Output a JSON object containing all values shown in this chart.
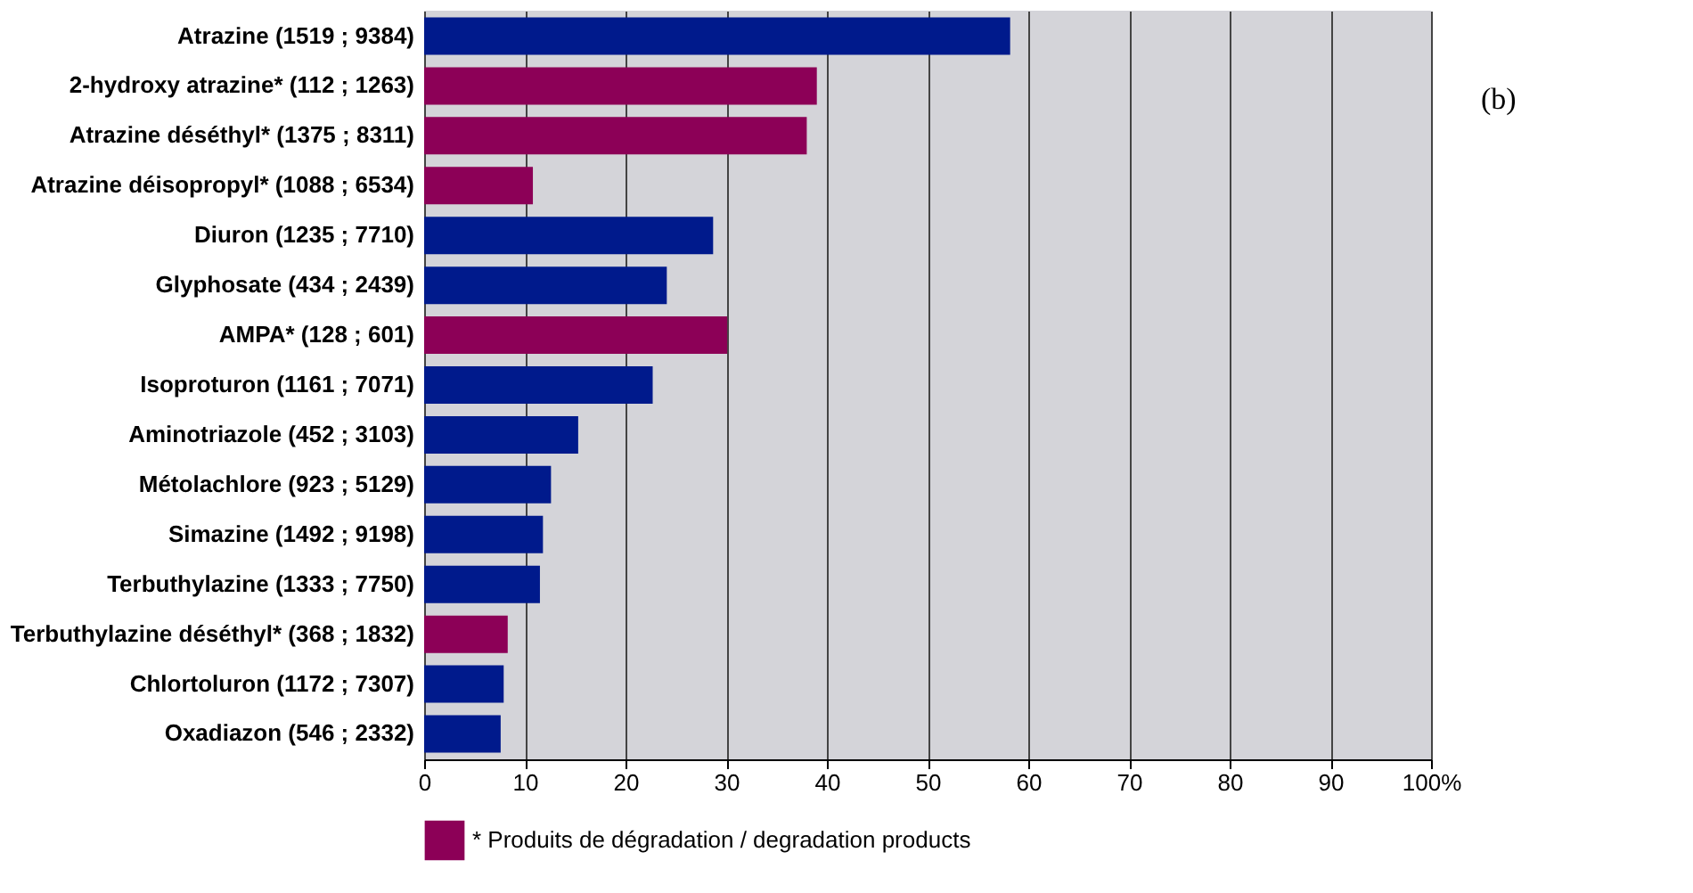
{
  "chart_data": {
    "type": "bar",
    "orientation": "horizontal",
    "categories": [
      "Atrazine (1519 ; 9384)",
      "2-hydroxy atrazine* (112 ; 1263)",
      "Atrazine déséthyl* (1375 ; 8311)",
      "Atrazine déisopropyl* (1088 ; 6534)",
      "Diuron (1235 ; 7710)",
      "Glyphosate (434 ; 2439)",
      "AMPA* (128 ; 601)",
      "Isoproturon (1161 ; 7071)",
      "Aminotriazole (452 ; 3103)",
      "Métolachlore (923 ; 5129)",
      "Simazine (1492 ; 9198)",
      "Terbuthylazine (1333 ; 7750)",
      "Terbuthylazine déséthyl* (368 ; 1832)",
      "Chlortoluron (1172 ; 7307)",
      "Oxadiazon (546 ; 2332)"
    ],
    "series": [
      {
        "color": "#001a8c",
        "values": [
          58.2,
          null,
          null,
          null,
          28.7,
          24.1,
          null,
          22.7,
          15.3,
          12.6,
          11.8,
          11.5,
          null,
          7.9,
          7.6
        ]
      },
      {
        "name": "* Produits de dégradation / degradation products",
        "color": "#8c0057",
        "values": [
          null,
          39,
          38,
          10.8,
          null,
          null,
          30.1,
          null,
          null,
          null,
          null,
          null,
          8.3,
          null,
          null
        ]
      }
    ],
    "xlim": [
      0,
      100
    ],
    "xticks": [
      0,
      10,
      20,
      30,
      40,
      50,
      60,
      70,
      80,
      90,
      {
        "value": 100,
        "label": "100%"
      }
    ],
    "grid": "x",
    "legend": "bottom",
    "annotations": [
      "(b)"
    ]
  }
}
